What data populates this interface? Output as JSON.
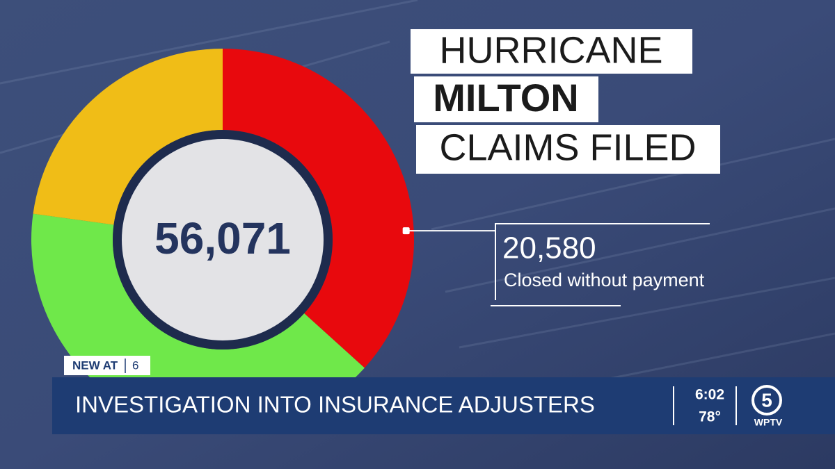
{
  "chart_data": {
    "type": "donut",
    "title_lines": [
      "HURRICANE",
      "MILTON",
      "CLAIMS FILED"
    ],
    "center_label": {
      "value": 56071,
      "label": "56,071"
    },
    "categories": [
      "Closed without payment",
      null,
      null
    ],
    "values": [
      20580,
      22691,
      12800
    ],
    "value_labels": [
      "20,580",
      null,
      null
    ],
    "colors": [
      "#e8090d",
      "#6fe84a",
      "#f0bd17"
    ]
  },
  "broadcast": {
    "tag": "NEW AT",
    "tag_hour": "6",
    "headline": "INVESTIGATION INTO INSURANCE ADJUSTERS",
    "time": "6:02",
    "temperature": "78°",
    "logo_number": "5",
    "station": "WPTV"
  }
}
